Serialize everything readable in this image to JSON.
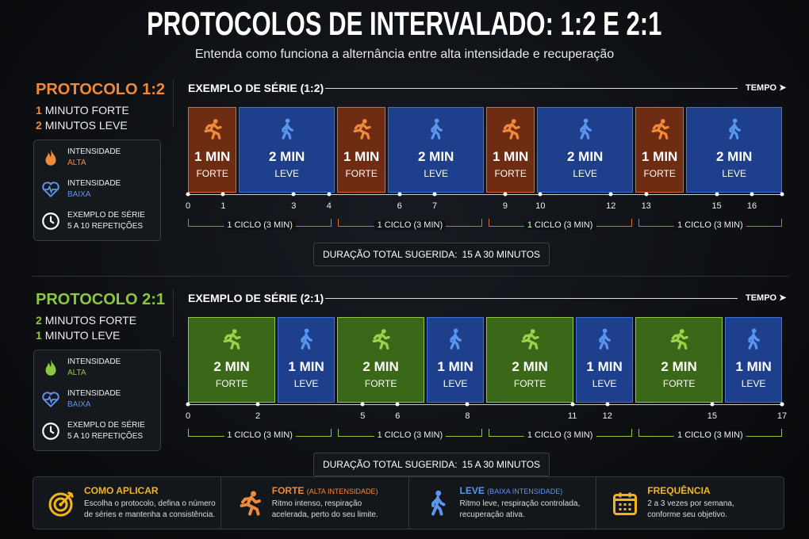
{
  "title": "PROTOCOLOS DE INTERVALADO: 1:2 E 2:1",
  "subtitle": "Entenda como funciona a alternância entre alta intensidade e recuperação",
  "protocols": [
    {
      "name": "PROTOCOLO 1:2",
      "lines": [
        {
          "num": "1",
          "text": "MINUTO FORTE"
        },
        {
          "num": "2",
          "text": "MINUTOS LEVE"
        }
      ],
      "info": [
        {
          "label": "INTENSIDADE",
          "value": "ALTA"
        },
        {
          "label": "INTENSIDADE",
          "value": "BAIXA"
        },
        {
          "label": "EXEMPLO DE SÉRIE",
          "value": "5 A 10 REPETIÇÕES"
        }
      ],
      "series_title": "EXEMPLO DE SÉRIE (1:2)",
      "axis_label": "TEMPO",
      "blocks": [
        {
          "duration": "1 MIN",
          "kind": "FORTE"
        },
        {
          "duration": "2 MIN",
          "kind": "LEVE"
        },
        {
          "duration": "1 MIN",
          "kind": "FORTE"
        },
        {
          "duration": "2 MIN",
          "kind": "LEVE"
        },
        {
          "duration": "1 MIN",
          "kind": "FORTE"
        },
        {
          "duration": "2 MIN",
          "kind": "LEVE"
        },
        {
          "duration": "1 MIN",
          "kind": "FORTE"
        },
        {
          "duration": "2 MIN",
          "kind": "LEVE"
        }
      ],
      "ticks": [
        0,
        1,
        3,
        4,
        6,
        7,
        9,
        10,
        12,
        13,
        15,
        16
      ],
      "cycles": [
        "1 CICLO (3 MIN)",
        "1 CICLO (3 MIN)",
        "1 CICLO (3 MIN)",
        "1 CICLO (3 MIN)"
      ],
      "total_label": "DURAÇÃO TOTAL SUGERIDA:",
      "total_value": "15 A 30 MINUTOS"
    },
    {
      "name": "PROTOCOLO 2:1",
      "lines": [
        {
          "num": "2",
          "text": "MINUTOS FORTE"
        },
        {
          "num": "1",
          "text": "MINUTO LEVE"
        }
      ],
      "info": [
        {
          "label": "INTENSIDADE",
          "value": "ALTA"
        },
        {
          "label": "INTENSIDADE",
          "value": "BAIXA"
        },
        {
          "label": "EXEMPLO DE SÉRIE",
          "value": "5 A 10 REPETIÇÕES"
        }
      ],
      "series_title": "EXEMPLO DE SÉRIE (2:1)",
      "axis_label": "TEMPO",
      "blocks": [
        {
          "duration": "2 MIN",
          "kind": "FORTE"
        },
        {
          "duration": "1 MIN",
          "kind": "LEVE"
        },
        {
          "duration": "2 MIN",
          "kind": "FORTE"
        },
        {
          "duration": "1 MIN",
          "kind": "LEVE"
        },
        {
          "duration": "2 MIN",
          "kind": "FORTE"
        },
        {
          "duration": "1 MIN",
          "kind": "LEVE"
        },
        {
          "duration": "2 MIN",
          "kind": "FORTE"
        },
        {
          "duration": "1 MIN",
          "kind": "LEVE"
        }
      ],
      "ticks": [
        0,
        2,
        5,
        6,
        8,
        11,
        12,
        15,
        17
      ],
      "cycles": [
        "1 CICLO (3 MIN)",
        "1 CICLO (3 MIN)",
        "1 CICLO (3 MIN)",
        "1 CICLO (3 MIN)"
      ],
      "total_label": "DURAÇÃO TOTAL SUGERIDA:",
      "total_value": "15 A 30 MINUTOS"
    }
  ],
  "footer": [
    {
      "title": "COMO APLICAR",
      "text": [
        "Escolha o protocolo, defina o número",
        "de séries e mantenha a consistência."
      ]
    },
    {
      "title": "FORTE",
      "note": "(ALTA INTENSIDADE)",
      "text": [
        "Ritmo intenso, respiração",
        "acelerada, perto do seu limite."
      ]
    },
    {
      "title": "LEVE",
      "note": "(BAIXA INTENSIDADE)",
      "text": [
        "Ritmo leve, respiração controlada,",
        "recuperação ativa."
      ]
    },
    {
      "title": "FREQUÊNCIA",
      "text": [
        "2 a 3 vezes por semana,",
        "conforme seu objetivo."
      ]
    }
  ]
}
